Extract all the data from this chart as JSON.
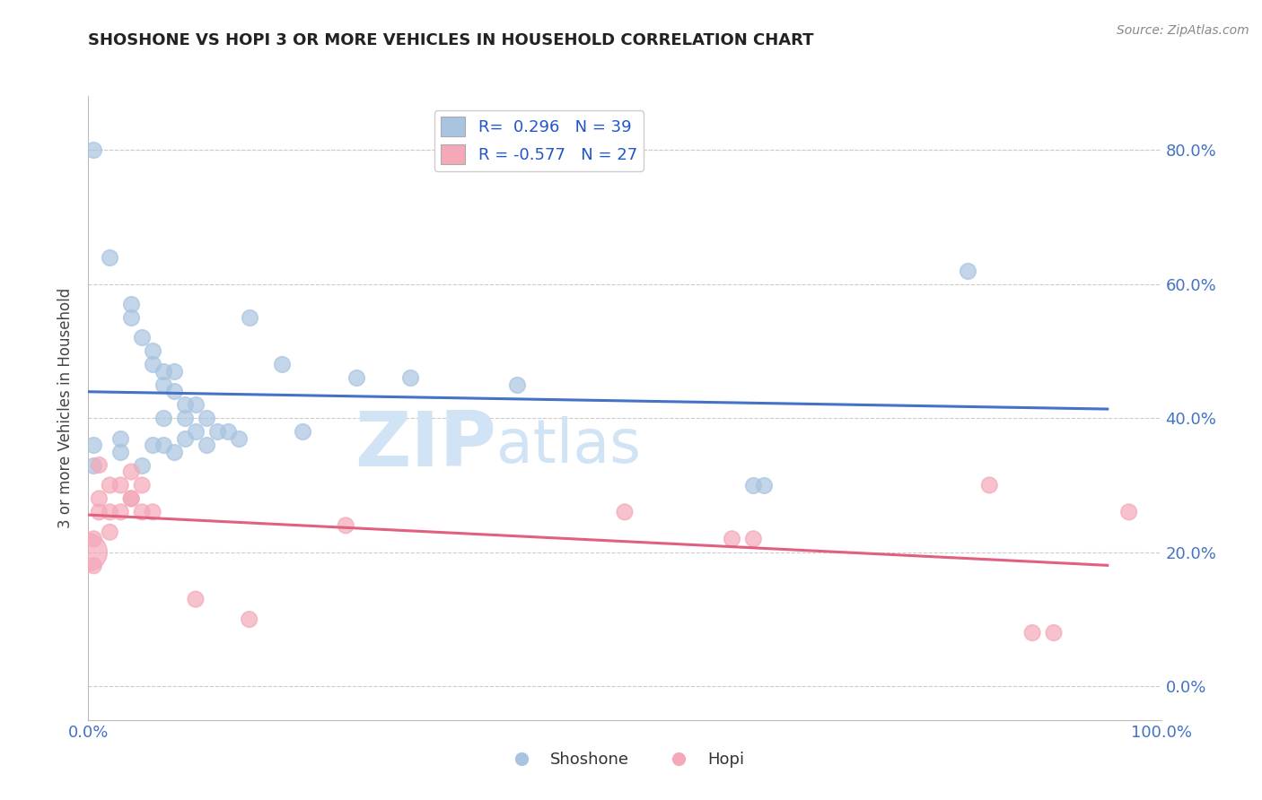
{
  "title": "SHOSHONE VS HOPI 3 OR MORE VEHICLES IN HOUSEHOLD CORRELATION CHART",
  "source": "Source: ZipAtlas.com",
  "ylabel": "3 or more Vehicles in Household",
  "xlim": [
    0.0,
    1.0
  ],
  "ylim": [
    -0.05,
    0.88
  ],
  "x_ticks": [
    0.0,
    0.2,
    0.4,
    0.6,
    0.8,
    1.0
  ],
  "x_tick_labels": [
    "0.0%",
    "",
    "",
    "",
    "",
    "100.0%"
  ],
  "y_ticks": [
    0.0,
    0.2,
    0.4,
    0.6,
    0.8
  ],
  "y_tick_labels_right": [
    "0.0%",
    "20.0%",
    "40.0%",
    "60.0%",
    "80.0%"
  ],
  "shoshone_R": 0.296,
  "shoshone_N": 39,
  "hopi_R": -0.577,
  "hopi_N": 27,
  "shoshone_color": "#a8c4e0",
  "hopi_color": "#f4a8b8",
  "shoshone_line_color": "#4472c4",
  "hopi_line_color": "#e06080",
  "tick_label_color": "#4472c4",
  "legend_label_color": "#2255cc",
  "watermark_color": "#d0e4f5",
  "shoshone_points": [
    [
      0.005,
      0.8
    ],
    [
      0.02,
      0.64
    ],
    [
      0.04,
      0.57
    ],
    [
      0.04,
      0.55
    ],
    [
      0.05,
      0.52
    ],
    [
      0.06,
      0.5
    ],
    [
      0.06,
      0.48
    ],
    [
      0.07,
      0.47
    ],
    [
      0.07,
      0.45
    ],
    [
      0.08,
      0.47
    ],
    [
      0.08,
      0.44
    ],
    [
      0.09,
      0.42
    ],
    [
      0.09,
      0.4
    ],
    [
      0.1,
      0.42
    ],
    [
      0.1,
      0.38
    ],
    [
      0.11,
      0.4
    ],
    [
      0.11,
      0.36
    ],
    [
      0.12,
      0.38
    ],
    [
      0.13,
      0.38
    ],
    [
      0.14,
      0.37
    ],
    [
      0.15,
      0.55
    ],
    [
      0.18,
      0.48
    ],
    [
      0.2,
      0.38
    ],
    [
      0.25,
      0.46
    ],
    [
      0.3,
      0.46
    ],
    [
      0.4,
      0.45
    ],
    [
      0.62,
      0.3
    ],
    [
      0.63,
      0.3
    ],
    [
      0.82,
      0.62
    ],
    [
      0.005,
      0.33
    ],
    [
      0.005,
      0.36
    ],
    [
      0.03,
      0.37
    ],
    [
      0.03,
      0.35
    ],
    [
      0.05,
      0.33
    ],
    [
      0.06,
      0.36
    ],
    [
      0.07,
      0.4
    ],
    [
      0.07,
      0.36
    ],
    [
      0.08,
      0.35
    ],
    [
      0.09,
      0.37
    ]
  ],
  "hopi_points": [
    [
      0.0,
      0.2
    ],
    [
      0.005,
      0.22
    ],
    [
      0.005,
      0.18
    ],
    [
      0.01,
      0.33
    ],
    [
      0.01,
      0.28
    ],
    [
      0.01,
      0.26
    ],
    [
      0.02,
      0.3
    ],
    [
      0.02,
      0.26
    ],
    [
      0.02,
      0.23
    ],
    [
      0.03,
      0.3
    ],
    [
      0.03,
      0.26
    ],
    [
      0.04,
      0.32
    ],
    [
      0.04,
      0.28
    ],
    [
      0.04,
      0.28
    ],
    [
      0.05,
      0.3
    ],
    [
      0.05,
      0.26
    ],
    [
      0.06,
      0.26
    ],
    [
      0.1,
      0.13
    ],
    [
      0.15,
      0.1
    ],
    [
      0.24,
      0.24
    ],
    [
      0.5,
      0.26
    ],
    [
      0.6,
      0.22
    ],
    [
      0.62,
      0.22
    ],
    [
      0.84,
      0.3
    ],
    [
      0.88,
      0.08
    ],
    [
      0.9,
      0.08
    ],
    [
      0.97,
      0.26
    ]
  ],
  "hopi_sizes": [
    900,
    100,
    100,
    100,
    100,
    100,
    100,
    100,
    100,
    100,
    100,
    100,
    100,
    100,
    100,
    100,
    100,
    100,
    100,
    100,
    100,
    100,
    100,
    100,
    100,
    100,
    100
  ]
}
